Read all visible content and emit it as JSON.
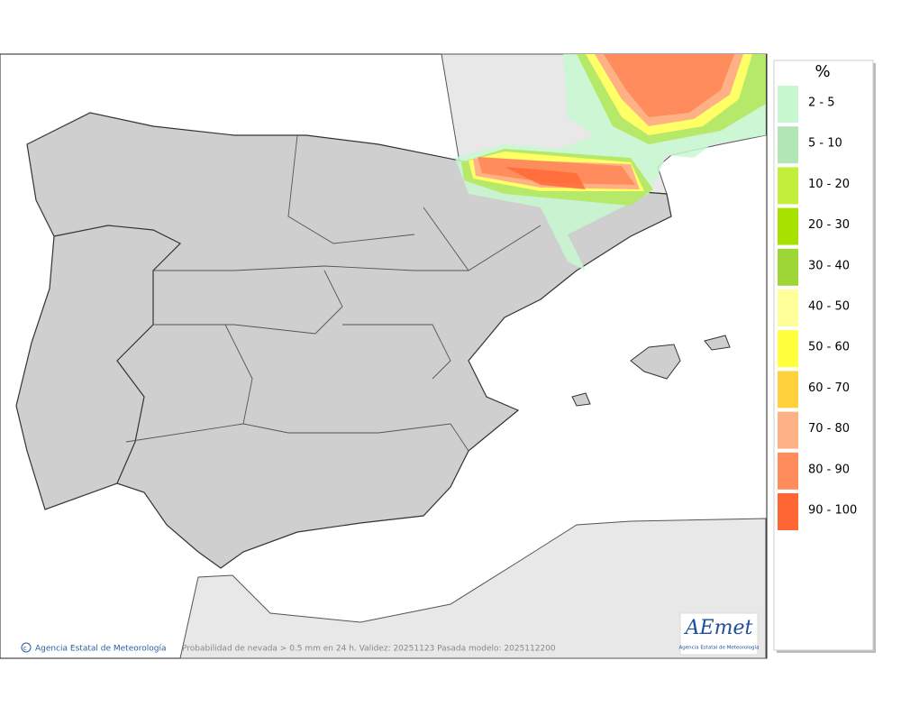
{
  "legend": {
    "title": "%",
    "items": [
      {
        "label": "2 - 5",
        "color": "#c8f8d0"
      },
      {
        "label": "5 - 10",
        "color": "#b2e6b6"
      },
      {
        "label": "10 - 20",
        "color": "#c2f03a"
      },
      {
        "label": "20 - 30",
        "color": "#a8e000"
      },
      {
        "label": "30 - 40",
        "color": "#9ed636"
      },
      {
        "label": "40 - 50",
        "color": "#ffff99"
      },
      {
        "label": "50 - 60",
        "color": "#ffff3c"
      },
      {
        "label": "60 - 70",
        "color": "#ffd23c"
      },
      {
        "label": "70 - 80",
        "color": "#ffb186"
      },
      {
        "label": "80 - 90",
        "color": "#ff8c5c"
      },
      {
        "label": "90 - 100",
        "color": "#ff6633"
      }
    ]
  },
  "credit": "Agencia Estatal de Meteorología",
  "caption": "Probabilidad de nevada > 0.5 mm en 24 h. Validez: 20251123 Pasada modelo: 2025112200",
  "logo": {
    "name": "AEmet",
    "subtitle": "Agencia Estatal de Meteorología"
  }
}
